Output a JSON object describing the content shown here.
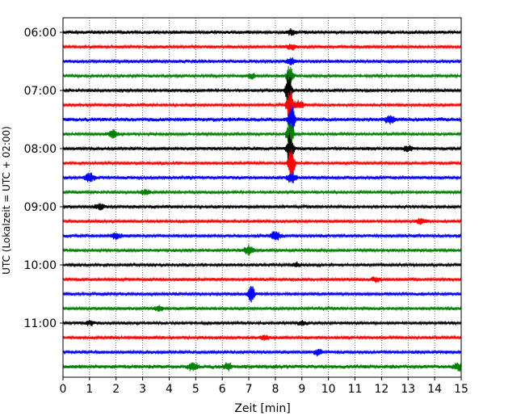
{
  "chart_data": {
    "type": "line",
    "title": "",
    "xlabel": "Zeit  [min]",
    "ylabel": "UTC (Lokalzeit = UTC + 02:00)",
    "xlim": [
      0,
      15
    ],
    "x_ticks": [
      "0",
      "1",
      "2",
      "3",
      "4",
      "5",
      "6",
      "7",
      "8",
      "9",
      "10",
      "11",
      "12",
      "13",
      "14",
      "15"
    ],
    "y_ticks": [
      {
        "label": "06:00",
        "trace_index": 0
      },
      {
        "label": "07:00",
        "trace_index": 4
      },
      {
        "label": "08:00",
        "trace_index": 8
      },
      {
        "label": "09:00",
        "trace_index": 12
      },
      {
        "label": "10:00",
        "trace_index": 16
      },
      {
        "label": "11:00",
        "trace_index": 20
      }
    ],
    "grid": "vertical dotted lines at each minute",
    "trace_colors": [
      "#000000",
      "#ff0000",
      "#0000ff",
      "#008000"
    ],
    "traces": [
      {
        "start": "06:00",
        "base_amplitude": 0.25,
        "events": [
          {
            "x": 8.6,
            "amp": 0.45
          }
        ]
      },
      {
        "start": "06:15",
        "base_amplitude": 0.22,
        "events": [
          {
            "x": 8.6,
            "amp": 0.5
          }
        ]
      },
      {
        "start": "06:30",
        "base_amplitude": 0.25,
        "events": [
          {
            "x": 8.6,
            "amp": 0.6
          }
        ]
      },
      {
        "start": "06:45",
        "base_amplitude": 0.22,
        "events": [
          {
            "x": 7.1,
            "amp": 0.4
          },
          {
            "x": 8.55,
            "amp": 2.2
          }
        ]
      },
      {
        "start": "07:00",
        "base_amplitude": 0.22,
        "events": [
          {
            "x": 8.5,
            "amp": 3.5
          }
        ]
      },
      {
        "start": "07:15",
        "base_amplitude": 0.22,
        "events": [
          {
            "x": 8.55,
            "amp": 3.0
          },
          {
            "x": 8.9,
            "amp": 0.8
          }
        ]
      },
      {
        "start": "07:30",
        "base_amplitude": 0.3,
        "events": [
          {
            "x": 8.6,
            "amp": 3.0
          },
          {
            "x": 12.3,
            "amp": 0.7
          }
        ]
      },
      {
        "start": "07:45",
        "base_amplitude": 0.22,
        "events": [
          {
            "x": 1.9,
            "amp": 0.7
          },
          {
            "x": 8.55,
            "amp": 3.0
          }
        ]
      },
      {
        "start": "08:00",
        "base_amplitude": 0.25,
        "events": [
          {
            "x": 8.55,
            "amp": 3.0
          },
          {
            "x": 13.0,
            "amp": 0.5
          }
        ]
      },
      {
        "start": "08:15",
        "base_amplitude": 0.22,
        "events": [
          {
            "x": 8.6,
            "amp": 3.0
          }
        ]
      },
      {
        "start": "08:30",
        "base_amplitude": 0.25,
        "events": [
          {
            "x": 1.0,
            "amp": 0.8
          },
          {
            "x": 8.6,
            "amp": 1.0
          }
        ]
      },
      {
        "start": "08:45",
        "base_amplitude": 0.22,
        "events": [
          {
            "x": 3.1,
            "amp": 0.4
          }
        ]
      },
      {
        "start": "09:00",
        "base_amplitude": 0.22,
        "events": [
          {
            "x": 1.4,
            "amp": 0.5
          }
        ]
      },
      {
        "start": "09:15",
        "base_amplitude": 0.22,
        "events": [
          {
            "x": 13.5,
            "amp": 0.5
          }
        ]
      },
      {
        "start": "09:30",
        "base_amplitude": 0.25,
        "events": [
          {
            "x": 2.0,
            "amp": 0.5
          },
          {
            "x": 8.0,
            "amp": 0.9
          }
        ]
      },
      {
        "start": "09:45",
        "base_amplitude": 0.22,
        "events": [
          {
            "x": 7.0,
            "amp": 0.9
          }
        ]
      },
      {
        "start": "10:00",
        "base_amplitude": 0.22,
        "events": [
          {
            "x": 8.8,
            "amp": 0.4
          }
        ]
      },
      {
        "start": "10:15",
        "base_amplitude": 0.22,
        "events": [
          {
            "x": 11.8,
            "amp": 0.4
          }
        ]
      },
      {
        "start": "10:30",
        "base_amplitude": 0.25,
        "events": [
          {
            "x": 7.1,
            "amp": 1.6
          }
        ]
      },
      {
        "start": "10:45",
        "base_amplitude": 0.22,
        "events": [
          {
            "x": 3.6,
            "amp": 0.4
          }
        ]
      },
      {
        "start": "11:00",
        "base_amplitude": 0.22,
        "events": [
          {
            "x": 1.0,
            "amp": 0.4
          },
          {
            "x": 9.0,
            "amp": 0.4
          }
        ]
      },
      {
        "start": "11:15",
        "base_amplitude": 0.22,
        "events": [
          {
            "x": 7.6,
            "amp": 0.4
          }
        ]
      },
      {
        "start": "11:30",
        "base_amplitude": 0.25,
        "events": [
          {
            "x": 9.6,
            "amp": 0.5
          }
        ]
      },
      {
        "start": "11:45",
        "base_amplitude": 0.3,
        "events": [
          {
            "x": 4.9,
            "amp": 0.7
          },
          {
            "x": 6.2,
            "amp": 0.5
          },
          {
            "x": 14.9,
            "amp": 0.6
          }
        ]
      }
    ]
  }
}
